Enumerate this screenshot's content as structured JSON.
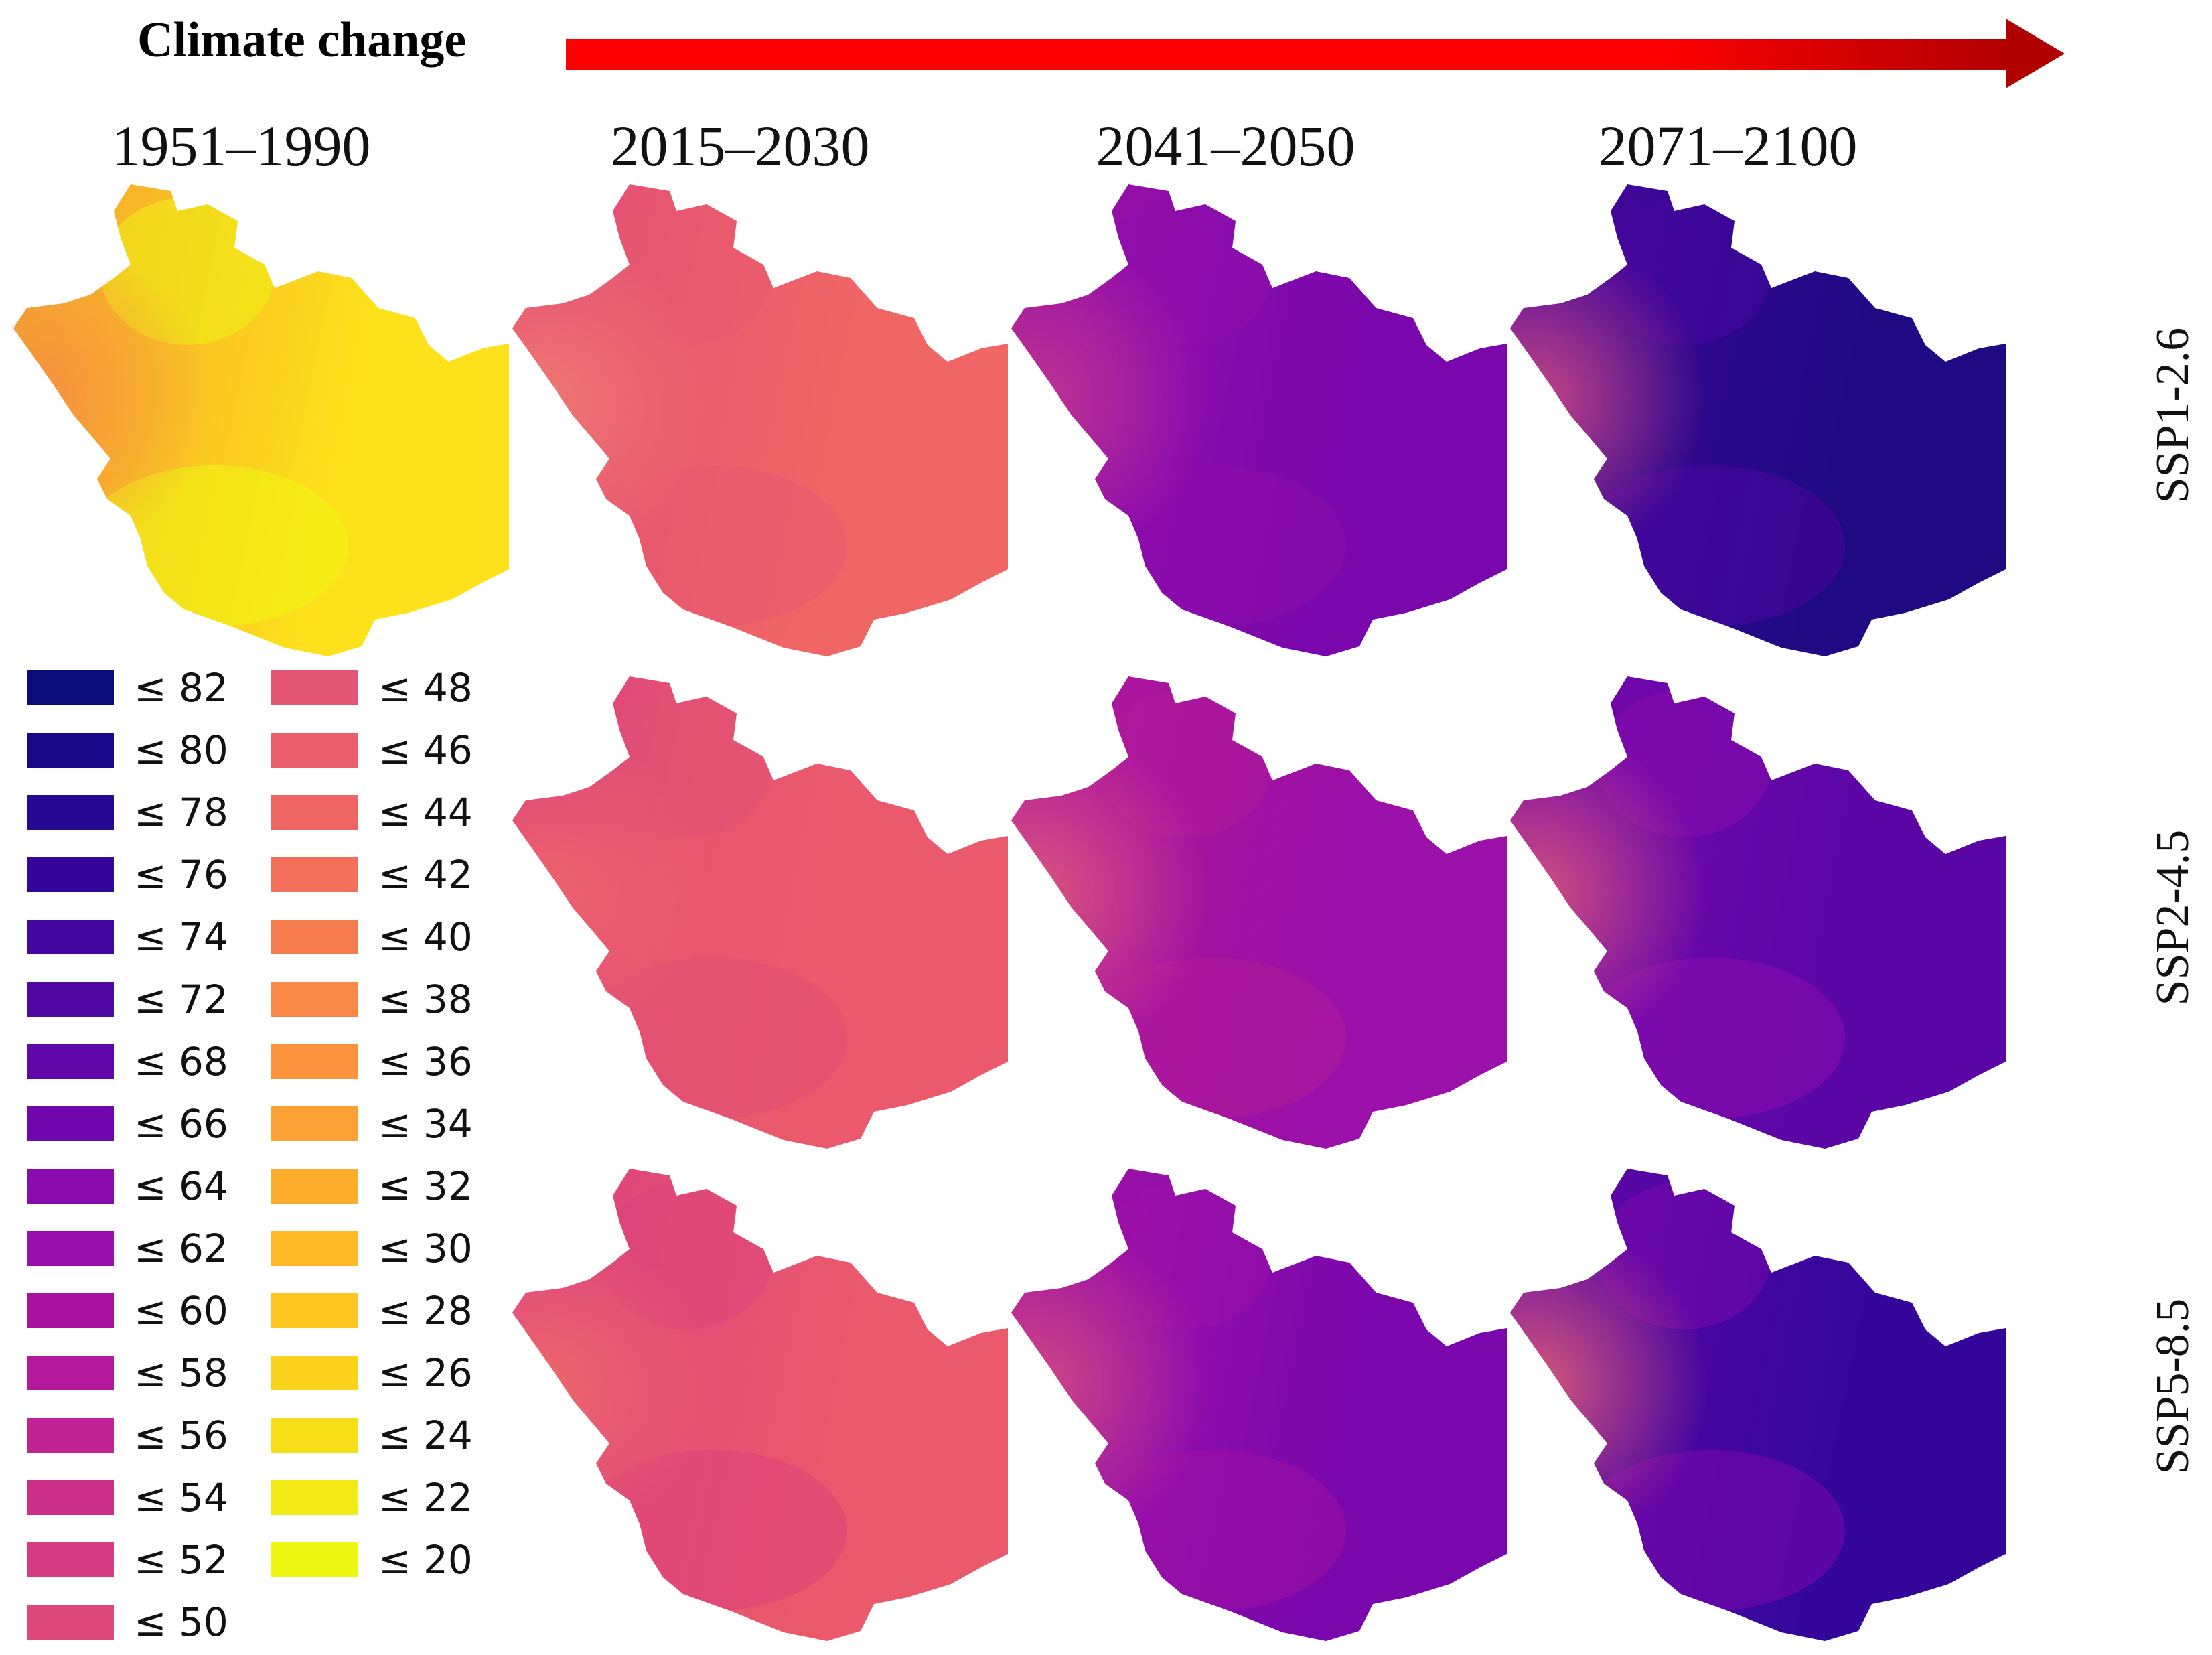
{
  "header": {
    "title": "Climate change",
    "arrow_colors": [
      "#ff0000",
      "#b00000"
    ]
  },
  "periods": [
    "1951–1990",
    "2015–2030",
    "2041–2050",
    "2071–2100"
  ],
  "scenarios": [
    "SSP1-2.6",
    "SSP2-4.5",
    "SSP5-8.5"
  ],
  "legend": {
    "column1": [
      {
        "label": "≤ 82",
        "color": "#0b0b7a"
      },
      {
        "label": "≤ 80",
        "color": "#19088a"
      },
      {
        "label": "≤ 78",
        "color": "#270892"
      },
      {
        "label": "≤ 76",
        "color": "#34079a"
      },
      {
        "label": "≤ 74",
        "color": "#43079f"
      },
      {
        "label": "≤ 72",
        "color": "#5208a3"
      },
      {
        "label": "≤ 68",
        "color": "#6107a8"
      },
      {
        "label": "≤ 66",
        "color": "#7007ac"
      },
      {
        "label": "≤ 64",
        "color": "#8a0cae"
      },
      {
        "label": "≤ 62",
        "color": "#990fad"
      },
      {
        "label": "≤ 60",
        "color": "#a7139f"
      },
      {
        "label": "≤ 58",
        "color": "#b4189b"
      },
      {
        "label": "≤ 56",
        "color": "#c12395"
      },
      {
        "label": "≤ 54",
        "color": "#cc2e8b"
      },
      {
        "label": "≤ 52",
        "color": "#d63a82"
      },
      {
        "label": "≤ 50",
        "color": "#de477a"
      }
    ],
    "column2": [
      {
        "label": "≤ 48",
        "color": "#e45675"
      },
      {
        "label": "≤ 46",
        "color": "#ea5e6c"
      },
      {
        "label": "≤ 44",
        "color": "#f06665"
      },
      {
        "label": "≤ 42",
        "color": "#f4705a"
      },
      {
        "label": "≤ 40",
        "color": "#f77c4f"
      },
      {
        "label": "≤ 38",
        "color": "#fa8846"
      },
      {
        "label": "≤ 36",
        "color": "#fb943c"
      },
      {
        "label": "≤ 34",
        "color": "#fca136"
      },
      {
        "label": "≤ 32",
        "color": "#fdad2c"
      },
      {
        "label": "≤ 30",
        "color": "#feb925"
      },
      {
        "label": "≤ 28",
        "color": "#fdc51f"
      },
      {
        "label": "≤ 26",
        "color": "#fbd21c"
      },
      {
        "label": "≤ 24",
        "color": "#f8de19"
      },
      {
        "label": "≤ 22",
        "color": "#f3ea16"
      },
      {
        "label": "≤ 20",
        "color": "#eef712"
      }
    ]
  },
  "map_grid": [
    {
      "row": "SSP1-2.6",
      "maps": [
        {
          "period": "1951–1990",
          "colors": [
            "#f6a52e",
            "#f9c224",
            "#fde11a",
            "#eef712",
            "#f58b43"
          ]
        },
        {
          "period": "2015–2030",
          "colors": [
            "#e1497a",
            "#ea5b6e",
            "#f06665",
            "#e85870",
            "#f08070"
          ]
        },
        {
          "period": "2041–2050",
          "colors": [
            "#a0139f",
            "#8a0cae",
            "#7a07ab",
            "#8d0daa",
            "#c43a8f"
          ]
        },
        {
          "period": "2071–2100",
          "colors": [
            "#5a07a5",
            "#2f078f",
            "#1f0a84",
            "#4a06a0",
            "#d8507f"
          ]
        }
      ]
    },
    {
      "row": "SSP2-4.5",
      "maps": [
        {
          "period": "2015–2030",
          "colors": [
            "#d83c82",
            "#e8566f",
            "#eb5a6c",
            "#e04f76",
            "#f06a69"
          ]
        },
        {
          "period": "2041–2050",
          "colors": [
            "#b4189b",
            "#a5129f",
            "#9a10a8",
            "#b01c99",
            "#e0607a"
          ]
        },
        {
          "period": "2071–2100",
          "colors": [
            "#7a07ab",
            "#6807a8",
            "#5a07a5",
            "#8a0cae",
            "#e25d78"
          ]
        }
      ]
    },
    {
      "row": "SSP5-8.5",
      "maps": [
        {
          "period": "2015–2030",
          "colors": [
            "#d93e81",
            "#e44f75",
            "#ea5a6c",
            "#dc4279",
            "#f06e68"
          ]
        },
        {
          "period": "2041–2050",
          "colors": [
            "#a5129f",
            "#8f0dac",
            "#7a07ab",
            "#9c10a6",
            "#d8507f"
          ]
        },
        {
          "period": "2071–2100",
          "colors": [
            "#6a07a8",
            "#4a06a0",
            "#34079a",
            "#7c08ab",
            "#e86672"
          ]
        }
      ]
    }
  ]
}
